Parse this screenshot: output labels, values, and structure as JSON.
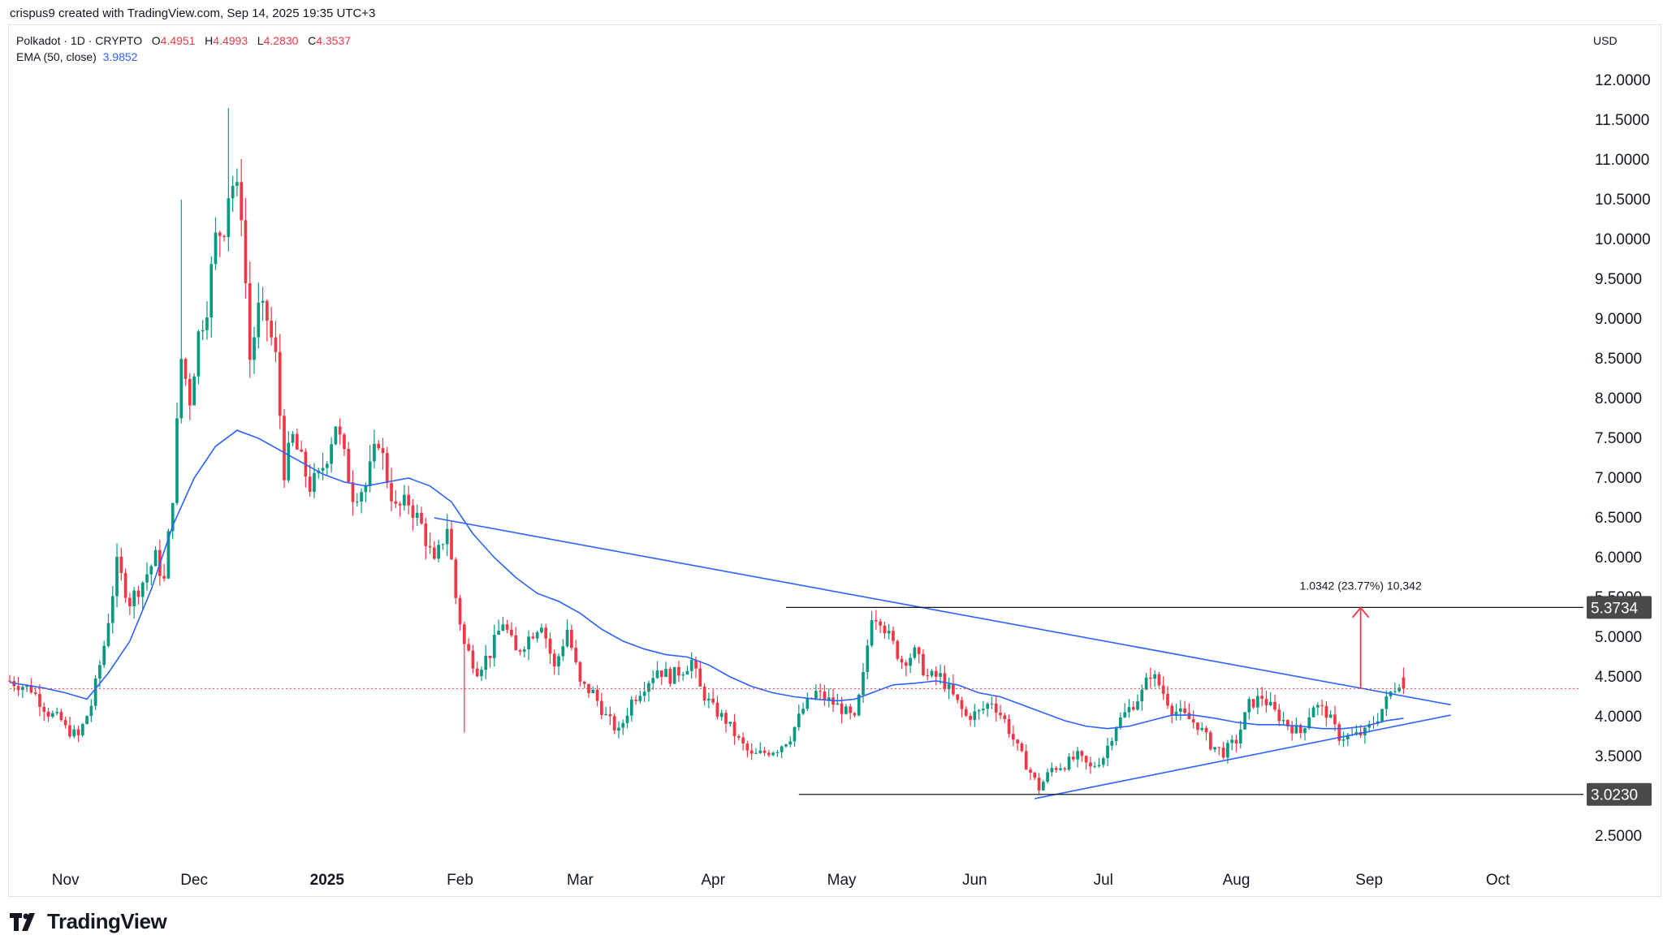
{
  "header": {
    "created_by": "crispus9 created with TradingView.com, Sep 14, 2025 19:35 UTC+3"
  },
  "legend": {
    "symbol": "Polkadot · 1D · CRYPTO",
    "o_label": "O",
    "o_value": "4.4951",
    "h_label": "H",
    "h_value": "4.4993",
    "l_label": "L",
    "l_value": "4.2830",
    "c_label": "C",
    "c_value": "4.3537",
    "ema_label": "EMA (50, close)",
    "ema_value": "3.9852"
  },
  "currency": "USD",
  "footer": {
    "brand": "TradingView",
    "logo_icon": "tradingview-logo-icon"
  },
  "colors": {
    "up": "#089981",
    "down": "#f23645",
    "ema": "#2962ff",
    "trendline": "#2962ff",
    "hline": "#131722",
    "arrow": "#f23645"
  },
  "chart_data": {
    "type": "candlestick",
    "title": "",
    "ylim": [
      2.2,
      12.4
    ],
    "y_ticks": [
      "2.5000",
      "3.0000",
      "3.5000",
      "4.0000",
      "4.5000",
      "5.0000",
      "5.5000",
      "6.0000",
      "6.5000",
      "7.0000",
      "7.5000",
      "8.0000",
      "8.5000",
      "9.0000",
      "9.5000",
      "10.0000",
      "10.5000",
      "11.0000",
      "11.5000",
      "12.0000"
    ],
    "x_ticks": [
      "Nov",
      "Dec",
      "2025",
      "Feb",
      "Mar",
      "Apr",
      "May",
      "Jun",
      "Jul",
      "Aug",
      "Sep",
      "Oct"
    ],
    "x_tick_days": [
      0,
      30,
      61,
      92,
      120,
      151,
      181,
      212,
      242,
      273,
      304,
      334
    ],
    "x_range_days": [
      -13,
      353
    ],
    "last_price": 4.3537,
    "horizontal_levels": [
      {
        "label": "5.3734",
        "value": 5.3734,
        "from_day": 168
      },
      {
        "label": "3.0230",
        "value": 3.023,
        "from_day": 171
      }
    ],
    "trendlines": [
      {
        "name": "",
        "points": [
          [
            86,
            6.5
          ],
          [
            323,
            4.15
          ]
        ]
      },
      {
        "name": "",
        "points": [
          [
            226,
            2.97
          ],
          [
            323,
            4.02
          ]
        ]
      }
    ],
    "measure": {
      "label": "1.0342 (23.77%) 10,342",
      "day": 302,
      "from": 4.35,
      "to": 5.37
    },
    "series": [
      {
        "name": "EMA (50, close)",
        "points": [
          [
            -13,
            4.43
          ],
          [
            -5,
            4.36
          ],
          [
            0,
            4.3
          ],
          [
            5,
            4.22
          ],
          [
            10,
            4.55
          ],
          [
            15,
            4.95
          ],
          [
            20,
            5.6
          ],
          [
            25,
            6.4
          ],
          [
            30,
            7.0
          ],
          [
            35,
            7.4
          ],
          [
            40,
            7.6
          ],
          [
            45,
            7.5
          ],
          [
            50,
            7.35
          ],
          [
            55,
            7.2
          ],
          [
            60,
            7.05
          ],
          [
            65,
            6.95
          ],
          [
            70,
            6.9
          ],
          [
            75,
            6.95
          ],
          [
            80,
            7.0
          ],
          [
            85,
            6.9
          ],
          [
            90,
            6.7
          ],
          [
            95,
            6.3
          ],
          [
            100,
            6.0
          ],
          [
            105,
            5.75
          ],
          [
            110,
            5.55
          ],
          [
            115,
            5.45
          ],
          [
            120,
            5.3
          ],
          [
            125,
            5.1
          ],
          [
            130,
            4.95
          ],
          [
            135,
            4.85
          ],
          [
            140,
            4.78
          ],
          [
            145,
            4.75
          ],
          [
            150,
            4.65
          ],
          [
            155,
            4.5
          ],
          [
            160,
            4.38
          ],
          [
            165,
            4.3
          ],
          [
            170,
            4.25
          ],
          [
            175,
            4.22
          ],
          [
            180,
            4.2
          ],
          [
            184,
            4.22
          ],
          [
            188,
            4.3
          ],
          [
            193,
            4.4
          ],
          [
            198,
            4.42
          ],
          [
            203,
            4.45
          ],
          [
            208,
            4.4
          ],
          [
            213,
            4.3
          ],
          [
            218,
            4.25
          ],
          [
            223,
            4.15
          ],
          [
            228,
            4.05
          ],
          [
            233,
            3.95
          ],
          [
            238,
            3.88
          ],
          [
            243,
            3.85
          ],
          [
            248,
            3.88
          ],
          [
            253,
            3.95
          ],
          [
            258,
            4.02
          ],
          [
            263,
            4.02
          ],
          [
            268,
            3.98
          ],
          [
            273,
            3.93
          ],
          [
            278,
            3.9
          ],
          [
            283,
            3.9
          ],
          [
            288,
            3.88
          ],
          [
            293,
            3.85
          ],
          [
            298,
            3.85
          ],
          [
            303,
            3.88
          ],
          [
            308,
            3.95
          ],
          [
            312,
            3.98
          ]
        ]
      }
    ],
    "candles_note": "daily OHLC",
    "candles": []
  }
}
